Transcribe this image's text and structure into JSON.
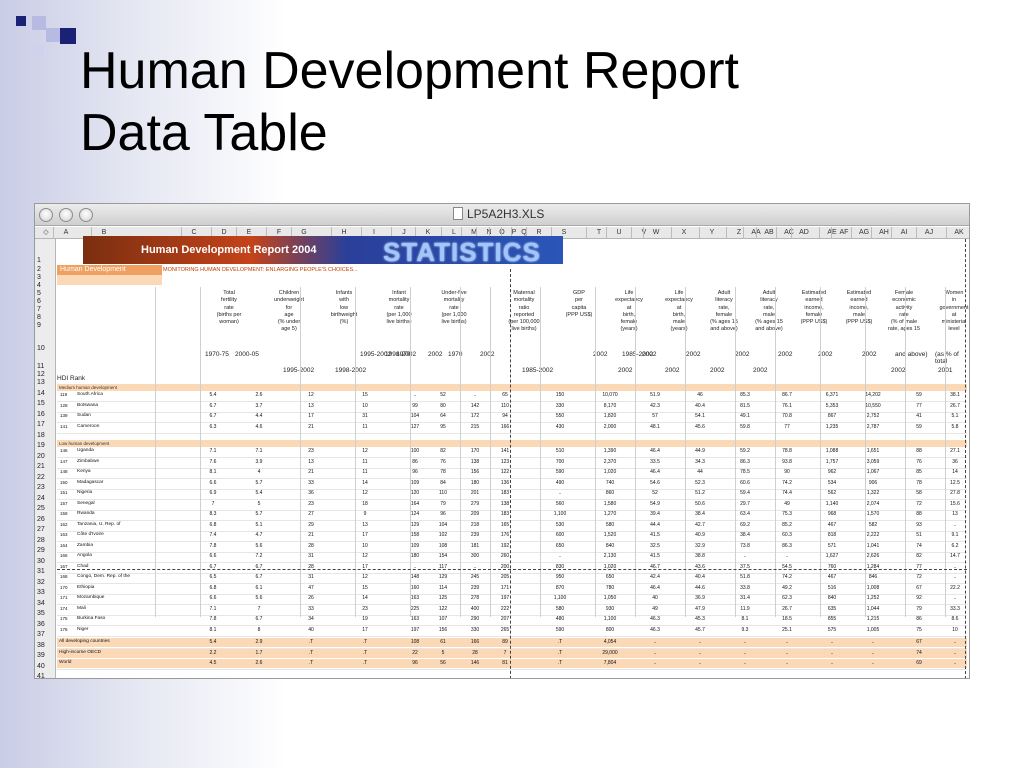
{
  "slide": {
    "title_line1": "Human Development Report",
    "title_line2": "Data Table"
  },
  "window": {
    "file_name": "LP5A2H3.XLS"
  },
  "columns": [
    "A",
    "B",
    "C",
    "D",
    "E",
    "F",
    "G",
    "H",
    "I",
    "J",
    "K",
    "L",
    "M",
    "N",
    "O",
    "P",
    "Q",
    "R",
    "S",
    "T",
    "U",
    "V",
    "W",
    "X",
    "Y",
    "Z",
    "AA",
    "AB",
    "AC",
    "AD",
    "AE",
    "AF",
    "AG",
    "AH",
    "AI",
    "AJ",
    "AK"
  ],
  "sheet": {
    "banner_title": "Human Development Report 2004",
    "banner_statistics": "STATISTICS",
    "section_label": "Human Development",
    "monitoring_text": "MONITORING HUMAN DEVELOPMENT: ENLARGING PEOPLE'S CHOICES...",
    "hdi_rank_label": "HDI Rank",
    "headers": [
      "Total\nfertility\nrate\n(births per\nwoman)",
      "Children\nunderweight\nfor\nage\n(% under\nage 5)",
      "Infants\nwith\nlow\nbirthweight\n(%)",
      "Infant\nmortality\nrate\n(per 1,000\nlive births)",
      "Under-five\nmortality\nrate\n(per 1,000\nlive births)",
      "Maternal\nmortality\nratio\nreported\n(per 100,000\nlive births)",
      "GDP\nper\ncapita\n(PPP US$)",
      "Life\nexpectancy\nat\nbirth,\nfemale\n(years)",
      "Life\nexpectancy\nat\nbirth,\nmale\n(years)",
      "Adult\nliteracy\nrate,\nfemale\n(% ages 15\nand above)",
      "Adult\nliteracy\nrate,\nmale\n(% ages 15\nand above)",
      "Estimated\nearned\nincome,\nfemale\n(PPP US$)",
      "Estimated\nearned\nincome,\nmale\n(PPP US$)",
      "Female\neconomic\nactivity\nrate\n(% of male\nrate, ages 15",
      "Women\nin\ngovernment\nat\nministerial\nlevel"
    ],
    "years_row10": [
      "1970-75",
      "2000-05",
      "1995-2002",
      "1998-2002",
      "1970",
      "2002",
      "1970",
      "2002",
      "1985-2002",
      "2002",
      "2002",
      "2002",
      "2002",
      "2002",
      "2002",
      "2002",
      "and above)",
      "(as % of total"
    ],
    "years_row11": [
      "1995-2002",
      "1998-2002",
      "1985-2002",
      "2002",
      "2002",
      "2002",
      "2002",
      "2002",
      "2001"
    ],
    "group_medium": "Medium human development",
    "group_low": "Low human development",
    "rows": [
      {
        "rank": "119",
        "name": "South Africa",
        "v": [
          "5.4",
          "2.6",
          "12",
          "15",
          "..",
          "52",
          "..",
          "65",
          "150",
          "10,070",
          "51.9",
          "46",
          "85.3",
          "86.7",
          "6,371",
          "14,202",
          "59",
          "38.1"
        ]
      },
      {
        "rank": "128",
        "name": "Botswana",
        "v": [
          "6.7",
          "3.7",
          "13",
          "10",
          "99",
          "80",
          "142",
          "110",
          "330",
          "8,170",
          "42.3",
          "40.4",
          "81.5",
          "76.1",
          "5,353",
          "10,550",
          "77",
          "26.7"
        ]
      },
      {
        "rank": "139",
        "name": "Sudan",
        "v": [
          "6.7",
          "4.4",
          "17",
          "31",
          "104",
          "64",
          "172",
          "94",
          "550",
          "1,820",
          "57",
          "54.1",
          "49.1",
          "70.8",
          "867",
          "2,752",
          "41",
          "5.1"
        ]
      },
      {
        "rank": "141",
        "name": "Cameroon",
        "v": [
          "6.3",
          "4.6",
          "21",
          "11",
          "127",
          "95",
          "215",
          "166",
          "430",
          "2,000",
          "48.1",
          "45.6",
          "59.8",
          "77",
          "1,235",
          "2,787",
          "59",
          "5.8"
        ]
      },
      {
        "rank": "146",
        "name": "Uganda",
        "v": [
          "7.1",
          "7.1",
          "23",
          "12",
          "100",
          "82",
          "170",
          "141",
          "510",
          "1,390",
          "46.4",
          "44.9",
          "59.2",
          "78.8",
          "1,088",
          "1,651",
          "88",
          "27.1"
        ]
      },
      {
        "rank": "147",
        "name": "Zimbabwe",
        "v": [
          "7.6",
          "3.9",
          "13",
          "11",
          "86",
          "76",
          "138",
          "123",
          "700",
          "2,370",
          "33.5",
          "34.3",
          "86.3",
          "93.8",
          "1,757",
          "3,059",
          "76",
          "36"
        ]
      },
      {
        "rank": "148",
        "name": "Kenya",
        "v": [
          "8.1",
          "4",
          "21",
          "11",
          "96",
          "78",
          "156",
          "122",
          "590",
          "1,020",
          "46.4",
          "44",
          "78.5",
          "90",
          "962",
          "1,067",
          "85",
          "14"
        ]
      },
      {
        "rank": "150",
        "name": "Madagascar",
        "v": [
          "6.6",
          "5.7",
          "33",
          "14",
          "109",
          "84",
          "180",
          "136",
          "490",
          "740",
          "54.6",
          "52.3",
          "60.6",
          "74.2",
          "534",
          "906",
          "78",
          "12.5"
        ]
      },
      {
        "rank": "151",
        "name": "Nigeria",
        "v": [
          "6.9",
          "5.4",
          "36",
          "12",
          "120",
          "110",
          "201",
          "183",
          "..",
          "860",
          "52",
          "51.2",
          "59.4",
          "74.4",
          "562",
          "1,322",
          "58",
          "27.8"
        ]
      },
      {
        "rank": "157",
        "name": "Senegal",
        "v": [
          "7",
          "5",
          "23",
          "18",
          "164",
          "79",
          "279",
          "138",
          "560",
          "1,580",
          "54.9",
          "50.6",
          "29.7",
          "49",
          "1,140",
          "2,074",
          "72",
          "15.6"
        ]
      },
      {
        "rank": "159",
        "name": "Rwanda",
        "v": [
          "8.3",
          "5.7",
          "27",
          "9",
          "124",
          "96",
          "209",
          "183",
          "1,100",
          "1,270",
          "39.4",
          "38.4",
          "63.4",
          "75.3",
          "968",
          "1,570",
          "88",
          "13"
        ]
      },
      {
        "rank": "162",
        "name": "Tanzania, U. Rep. of",
        "v": [
          "6.8",
          "5.1",
          "29",
          "13",
          "129",
          "104",
          "218",
          "165",
          "530",
          "580",
          "44.4",
          "42.7",
          "69.2",
          "85.2",
          "467",
          "582",
          "93",
          ".."
        ]
      },
      {
        "rank": "163",
        "name": "Côte d'Ivoire",
        "v": [
          "7.4",
          "4.7",
          "21",
          "17",
          "158",
          "102",
          "239",
          "176",
          "600",
          "1,520",
          "41.5",
          "40.9",
          "38.4",
          "60.3",
          "818",
          "2,222",
          "51",
          "9.1"
        ]
      },
      {
        "rank": "164",
        "name": "Zambia",
        "v": [
          "7.8",
          "5.6",
          "28",
          "10",
          "109",
          "108",
          "181",
          "192",
          "650",
          "840",
          "32.5",
          "32.9",
          "73.8",
          "86.3",
          "571",
          "1,041",
          "74",
          "6.2"
        ]
      },
      {
        "rank": "166",
        "name": "Angola",
        "v": [
          "6.6",
          "7.2",
          "31",
          "12",
          "180",
          "154",
          "300",
          "260",
          "..",
          "2,130",
          "41.5",
          "38.8",
          "..",
          "..",
          "1,627",
          "2,626",
          "82",
          "14.7"
        ]
      },
      {
        "rank": "167",
        "name": "Chad",
        "v": [
          "6.7",
          "6.7",
          "28",
          "17",
          "..",
          "117",
          "..",
          "200",
          "830",
          "1,020",
          "46.7",
          "43.6",
          "37.5",
          "54.5",
          "760",
          "1,284",
          "77",
          ".."
        ]
      },
      {
        "rank": "168",
        "name": "Congo, Dem. Rep. of the",
        "v": [
          "6.5",
          "6.7",
          "31",
          "12",
          "148",
          "129",
          "245",
          "205",
          "950",
          "650",
          "42.4",
          "40.4",
          "51.8",
          "74.2",
          "467",
          "846",
          "72",
          ".."
        ]
      },
      {
        "rank": "170",
        "name": "Ethiopia",
        "v": [
          "6.8",
          "6.1",
          "47",
          "15",
          "160",
          "114",
          "239",
          "171",
          "870",
          "780",
          "46.4",
          "44.6",
          "33.8",
          "49.2",
          "516",
          "1,008",
          "67",
          "22.2"
        ]
      },
      {
        "rank": "171",
        "name": "Mozambique",
        "v": [
          "6.6",
          "5.6",
          "26",
          "14",
          "163",
          "125",
          "278",
          "197",
          "1,100",
          "1,050",
          "40",
          "36.9",
          "31.4",
          "62.3",
          "840",
          "1,252",
          "92",
          ".."
        ]
      },
      {
        "rank": "174",
        "name": "Mali",
        "v": [
          "7.1",
          "7",
          "33",
          "23",
          "225",
          "122",
          "400",
          "222",
          "580",
          "930",
          "49",
          "47.9",
          "11.9",
          "26.7",
          "635",
          "1,044",
          "79",
          "33.3"
        ]
      },
      {
        "rank": "175",
        "name": "Burkina Faso",
        "v": [
          "7.8",
          "6.7",
          "34",
          "19",
          "163",
          "107",
          "290",
          "207",
          "480",
          "1,100",
          "46.3",
          "45.3",
          "8.1",
          "18.5",
          "855",
          "1,215",
          "86",
          "8.6"
        ]
      },
      {
        "rank": "176",
        "name": "Niger",
        "v": [
          "8.1",
          "8",
          "40",
          "17",
          "197",
          "156",
          "330",
          "265",
          "590",
          "800",
          "46.3",
          "45.7",
          "9.3",
          "25.1",
          "575",
          "1,005",
          "75",
          "10"
        ]
      }
    ],
    "aggregates": [
      {
        "name": "All developing countries",
        "v": [
          "5.4",
          "2.9",
          ".T",
          ".T",
          "108",
          "61",
          "166",
          "89",
          ".T",
          "4,054",
          "..",
          "..",
          "..",
          "..",
          "..",
          "..",
          "67",
          ".."
        ]
      },
      {
        "name": "High-income OECD",
        "v": [
          "2.2",
          "1.7",
          ".T",
          ".T",
          "22",
          "5",
          "28",
          "7",
          ".T",
          "29,000",
          "..",
          "..",
          "..",
          "..",
          "..",
          "..",
          "74",
          ".."
        ]
      },
      {
        "name": "World",
        "v": [
          "4.5",
          "2.6",
          ".T",
          ".T",
          "96",
          "56",
          "146",
          "81",
          ".T",
          "7,804",
          "..",
          "..",
          "..",
          "..",
          "..",
          "..",
          "69",
          ".."
        ]
      }
    ]
  }
}
